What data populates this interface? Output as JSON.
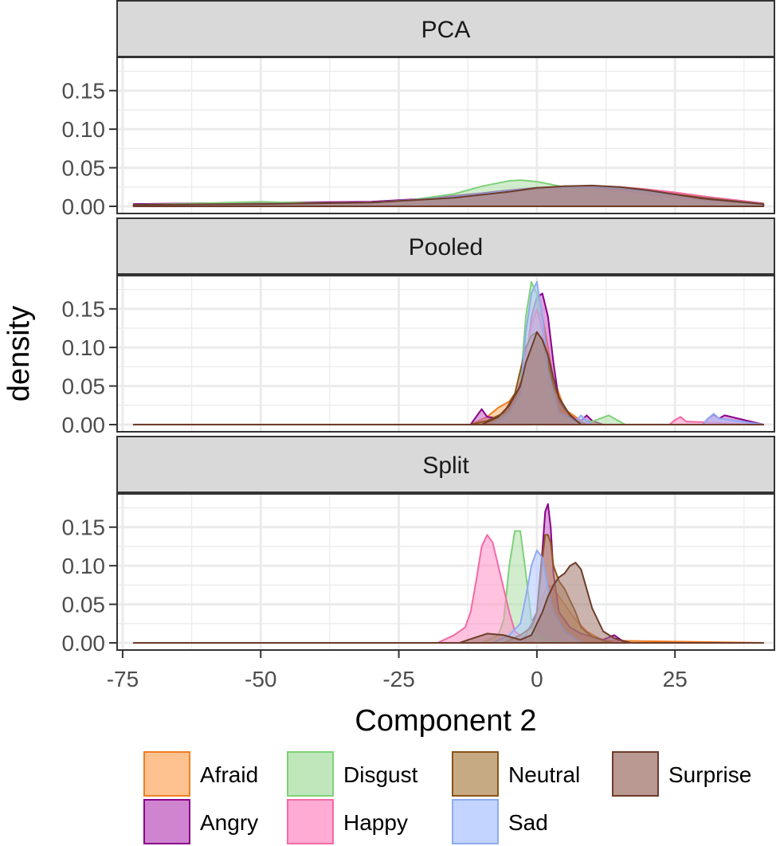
{
  "chart_data": {
    "type": "area",
    "subtype": "density",
    "facet_layout": "vertical",
    "xlabel": "Component 2",
    "ylabel": "density",
    "xlim": [
      -76,
      43
    ],
    "ylim": [
      0,
      0.19
    ],
    "x_ticks": [
      -75,
      -50,
      -25,
      0,
      25
    ],
    "x_tick_labels": [
      "-75",
      "-50",
      "-25",
      "0",
      "25"
    ],
    "y_ticks": [
      0.0,
      0.05,
      0.1,
      0.15
    ],
    "y_tick_labels": [
      "0.00",
      "0.05",
      "0.10",
      "0.15"
    ],
    "grid": true,
    "legend_position": "bottom",
    "series": [
      {
        "name": "Afraid",
        "fill": "#fdae6b",
        "stroke": "#f07f25"
      },
      {
        "name": "Angry",
        "fill": "#bf5bbf",
        "stroke": "#8a008a"
      },
      {
        "name": "Disgust",
        "fill": "#abdfa6",
        "stroke": "#7fd17a"
      },
      {
        "name": "Happy",
        "fill": "#ff8fc4",
        "stroke": "#f26aa6"
      },
      {
        "name": "Neutral",
        "fill": "#b38d5a",
        "stroke": "#8a5418"
      },
      {
        "name": "Sad",
        "fill": "#aec6ff",
        "stroke": "#90aaf0"
      },
      {
        "name": "Surprise",
        "fill": "#a1776c",
        "stroke": "#6e3c2a"
      }
    ],
    "panels": [
      {
        "label": "PCA",
        "densities": [
          {
            "series": "Afraid",
            "x": [
              -73,
              -50,
              -35,
              -20,
              -10,
              0,
              5,
              10,
              15,
              20,
              25,
              30,
              35,
              41
            ],
            "y": [
              0.001,
              0.003,
              0.004,
              0.006,
              0.014,
              0.022,
              0.025,
              0.026,
              0.025,
              0.022,
              0.018,
              0.013,
              0.008,
              0.003
            ]
          },
          {
            "series": "Angry",
            "x": [
              -73,
              -60,
              -45,
              -30,
              -20,
              -10,
              -5,
              0,
              5,
              10,
              15,
              20,
              30,
              41
            ],
            "y": [
              0.003,
              0.004,
              0.005,
              0.006,
              0.01,
              0.017,
              0.021,
              0.024,
              0.025,
              0.024,
              0.021,
              0.016,
              0.008,
              0.002
            ]
          },
          {
            "series": "Disgust",
            "x": [
              -73,
              -60,
              -50,
              -45,
              -35,
              -25,
              -15,
              -10,
              -5,
              -3,
              0,
              5,
              10,
              15,
              20,
              30,
              41
            ],
            "y": [
              0.002,
              0.004,
              0.006,
              0.005,
              0.004,
              0.006,
              0.016,
              0.026,
              0.033,
              0.034,
              0.032,
              0.025,
              0.018,
              0.012,
              0.008,
              0.004,
              0.002
            ]
          },
          {
            "series": "Happy",
            "x": [
              -73,
              -50,
              -30,
              -15,
              -5,
              0,
              5,
              10,
              15,
              20,
              25,
              30,
              41
            ],
            "y": [
              0.002,
              0.003,
              0.005,
              0.011,
              0.018,
              0.022,
              0.025,
              0.026,
              0.025,
              0.022,
              0.018,
              0.013,
              0.004
            ]
          },
          {
            "series": "Neutral",
            "x": [
              -73,
              -50,
              -30,
              -15,
              -5,
              0,
              5,
              10,
              15,
              20,
              30,
              41
            ],
            "y": [
              0.002,
              0.003,
              0.005,
              0.011,
              0.019,
              0.023,
              0.026,
              0.026,
              0.024,
              0.02,
              0.011,
              0.003
            ]
          },
          {
            "series": "Sad",
            "x": [
              -73,
              -50,
              -30,
              -15,
              -5,
              0,
              5,
              10,
              15,
              20,
              30,
              41
            ],
            "y": [
              0.002,
              0.003,
              0.005,
              0.012,
              0.02,
              0.024,
              0.025,
              0.025,
              0.023,
              0.019,
              0.01,
              0.003
            ]
          },
          {
            "series": "Surprise",
            "x": [
              -73,
              -50,
              -30,
              -15,
              -5,
              0,
              5,
              10,
              15,
              20,
              30,
              41
            ],
            "y": [
              0.002,
              0.003,
              0.005,
              0.011,
              0.019,
              0.024,
              0.026,
              0.027,
              0.025,
              0.021,
              0.01,
              0.003
            ]
          }
        ]
      },
      {
        "label": "Pooled",
        "densities": [
          {
            "series": "Afraid",
            "x": [
              -73,
              -12,
              -9,
              -7,
              -5,
              -3,
              -1,
              0,
              1,
              2,
              3,
              5,
              8,
              12,
              41
            ],
            "y": [
              0,
              0.0,
              0.01,
              0.022,
              0.03,
              0.05,
              0.12,
              0.15,
              0.14,
              0.1,
              0.06,
              0.02,
              0.005,
              0.0,
              0
            ]
          },
          {
            "series": "Angry",
            "x": [
              -73,
              -12,
              -11,
              -10,
              -9,
              -7,
              -4,
              -2,
              -1,
              0,
              1,
              2,
              3,
              4,
              6,
              8,
              9,
              10,
              12,
              30,
              31,
              32,
              33,
              34,
              41
            ],
            "y": [
              0,
              0,
              0.01,
              0.02,
              0.01,
              0.008,
              0.03,
              0.08,
              0.14,
              0.165,
              0.17,
              0.14,
              0.08,
              0.03,
              0.01,
              0.005,
              0.012,
              0.005,
              0,
              0,
              0.008,
              0.013,
              0.008,
              0.012,
              0
            ]
          },
          {
            "series": "Disgust",
            "x": [
              -73,
              -8,
              -5,
              -3,
              -2,
              -1,
              0,
              1,
              2,
              4,
              7,
              10,
              13,
              14,
              16,
              41
            ],
            "y": [
              0,
              0,
              0.02,
              0.05,
              0.14,
              0.185,
              0.17,
              0.1,
              0.04,
              0.01,
              0.005,
              0.004,
              0.012,
              0.008,
              0,
              0
            ]
          },
          {
            "series": "Happy",
            "x": [
              -73,
              -10,
              -7,
              -5,
              -3,
              -1,
              0,
              1,
              2,
              4,
              8,
              10,
              24,
              25,
              26,
              27,
              41
            ],
            "y": [
              0,
              0,
              0.01,
              0.02,
              0.05,
              0.13,
              0.15,
              0.12,
              0.07,
              0.02,
              0.004,
              0,
              0,
              0.006,
              0.01,
              0.004,
              0
            ]
          },
          {
            "series": "Neutral",
            "x": [
              -73,
              -12,
              -9,
              -6,
              -4,
              -3,
              -2,
              -1,
              0,
              1,
              2,
              3,
              5,
              7,
              9,
              41
            ],
            "y": [
              0,
              0,
              0.005,
              0.015,
              0.04,
              0.07,
              0.1,
              0.115,
              0.12,
              0.11,
              0.08,
              0.05,
              0.02,
              0.006,
              0,
              0
            ]
          },
          {
            "series": "Sad",
            "x": [
              -73,
              -8,
              -5,
              -3,
              -2,
              -1,
              0,
              1,
              2,
              4,
              7,
              8,
              9,
              10,
              30,
              31,
              32,
              33,
              41
            ],
            "y": [
              0,
              0,
              0.015,
              0.04,
              0.12,
              0.17,
              0.185,
              0.14,
              0.07,
              0.015,
              0.005,
              0.012,
              0.005,
              0,
              0,
              0.008,
              0.014,
              0.008,
              0
            ]
          },
          {
            "series": "Surprise",
            "x": [
              -73,
              -10,
              -7,
              -5,
              -3,
              -2,
              -1,
              0,
              1,
              2,
              3,
              4,
              6,
              8,
              41
            ],
            "y": [
              0,
              0,
              0.01,
              0.025,
              0.05,
              0.08,
              0.1,
              0.12,
              0.11,
              0.09,
              0.06,
              0.035,
              0.012,
              0,
              0
            ]
          }
        ]
      },
      {
        "label": "Split",
        "densities": [
          {
            "series": "Afraid",
            "x": [
              -73,
              -6,
              -3,
              -1,
              0,
              1,
              2,
              3,
              5,
              7,
              9,
              12,
              41
            ],
            "y": [
              0,
              0,
              0.01,
              0.02,
              0.035,
              0.06,
              0.075,
              0.07,
              0.05,
              0.03,
              0.015,
              0.003,
              0
            ]
          },
          {
            "series": "Angry",
            "x": [
              -73,
              -4,
              -2,
              0,
              1,
              1.5,
              2,
              2.5,
              3,
              4,
              6,
              8,
              10,
              12,
              14,
              15,
              16,
              41
            ],
            "y": [
              0,
              0,
              0.01,
              0.04,
              0.12,
              0.17,
              0.18,
              0.15,
              0.09,
              0.04,
              0.02,
              0.012,
              0.008,
              0.004,
              0.01,
              0.005,
              0,
              0
            ]
          },
          {
            "series": "Disgust",
            "x": [
              -73,
              -10,
              -7,
              -6,
              -5,
              -4,
              -3,
              -2,
              -1,
              0,
              2,
              5,
              41
            ],
            "y": [
              0,
              0,
              0.01,
              0.03,
              0.1,
              0.145,
              0.145,
              0.09,
              0.03,
              0.01,
              0.003,
              0,
              0
            ]
          },
          {
            "series": "Happy",
            "x": [
              -73,
              -18,
              -15,
              -13,
              -12,
              -11,
              -10,
              -9,
              -8,
              -7,
              -6,
              -5,
              -4,
              -2,
              0,
              41
            ],
            "y": [
              0,
              0,
              0.01,
              0.02,
              0.04,
              0.08,
              0.125,
              0.14,
              0.13,
              0.1,
              0.07,
              0.04,
              0.015,
              0.004,
              0,
              0
            ]
          },
          {
            "series": "Neutral",
            "x": [
              -73,
              -6,
              -3,
              -1,
              0,
              1,
              1.5,
              2,
              2.5,
              3,
              4,
              5,
              6,
              7,
              8,
              10,
              12,
              14,
              41
            ],
            "y": [
              0,
              0,
              0.01,
              0.02,
              0.04,
              0.11,
              0.14,
              0.14,
              0.13,
              0.1,
              0.08,
              0.07,
              0.055,
              0.04,
              0.02,
              0.008,
              0.003,
              0,
              0
            ]
          },
          {
            "series": "Sad",
            "x": [
              -73,
              -8,
              -5,
              -3,
              -2,
              -1,
              0,
              1,
              2,
              3,
              5,
              8,
              41
            ],
            "y": [
              0,
              0,
              0.01,
              0.025,
              0.06,
              0.1,
              0.12,
              0.11,
              0.07,
              0.04,
              0.015,
              0,
              0
            ]
          },
          {
            "series": "Surprise",
            "x": [
              -73,
              -14,
              -12,
              -9,
              -6,
              -3,
              -1,
              1,
              2,
              3,
              4,
              5,
              6,
              7,
              8,
              9,
              10,
              12,
              14,
              17,
              41
            ],
            "y": [
              0,
              0,
              0.005,
              0.012,
              0.01,
              0.004,
              0.01,
              0.04,
              0.06,
              0.075,
              0.085,
              0.09,
              0.1,
              0.104,
              0.095,
              0.07,
              0.045,
              0.015,
              0.006,
              0,
              0
            ]
          }
        ]
      }
    ]
  }
}
